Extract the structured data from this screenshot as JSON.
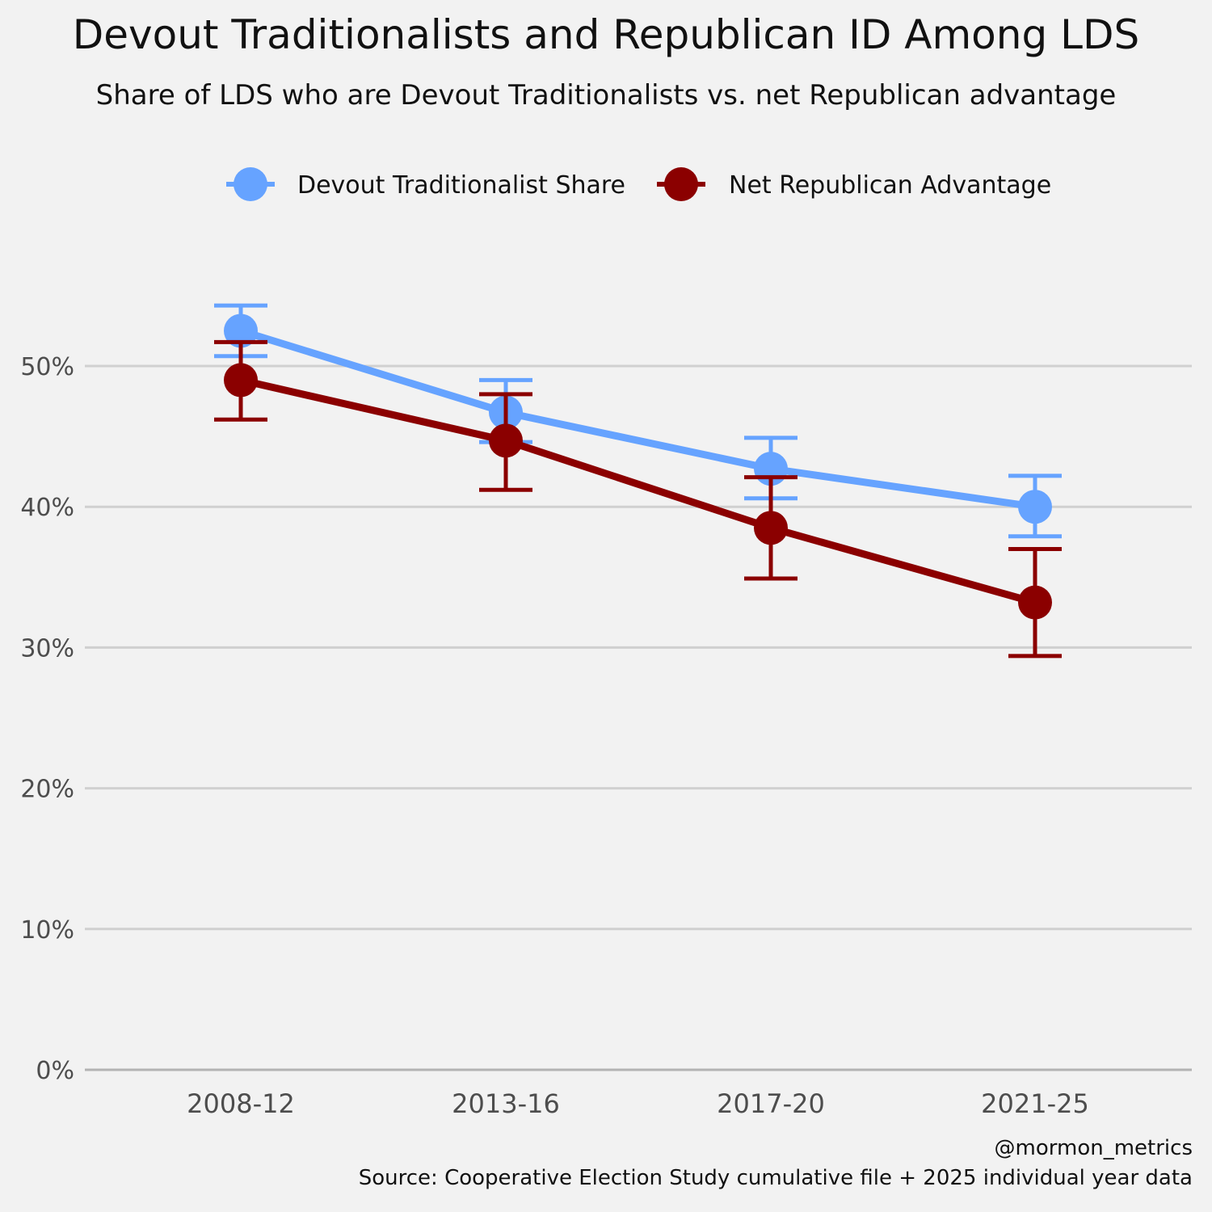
{
  "chart_data": {
    "type": "line",
    "title": "Devout Traditionalists and Republican ID Among LDS",
    "subtitle": "Share of LDS who are Devout Traditionalists vs. net Republican advantage",
    "xlabel": "",
    "ylabel": "",
    "categories": [
      "2008-12",
      "2013-16",
      "2017-20",
      "2021-25"
    ],
    "ylim": [
      0,
      57
    ],
    "yticks": [
      0,
      10,
      20,
      30,
      40,
      50
    ],
    "ytick_labels": [
      "0%",
      "10%",
      "20%",
      "30%",
      "40%",
      "50%"
    ],
    "grid": true,
    "legend_position": "top",
    "series": [
      {
        "name": "Devout Traditionalist Share",
        "color": "#66a3ff",
        "values": [
          52.5,
          46.7,
          42.7,
          40.0
        ],
        "lower": [
          50.7,
          44.6,
          40.6,
          37.9
        ],
        "upper": [
          54.3,
          49.0,
          44.9,
          42.2
        ]
      },
      {
        "name": "Net Republican Advantage",
        "color": "#8b0000",
        "values": [
          49.0,
          44.7,
          38.5,
          33.2
        ],
        "lower": [
          46.2,
          41.2,
          34.9,
          29.4
        ],
        "upper": [
          51.7,
          48.0,
          42.1,
          37.0
        ]
      }
    ]
  },
  "caption": {
    "handle": "@mormon_metrics",
    "source": "Source: Cooperative Election Study cumulative file + 2025 individual year data"
  }
}
